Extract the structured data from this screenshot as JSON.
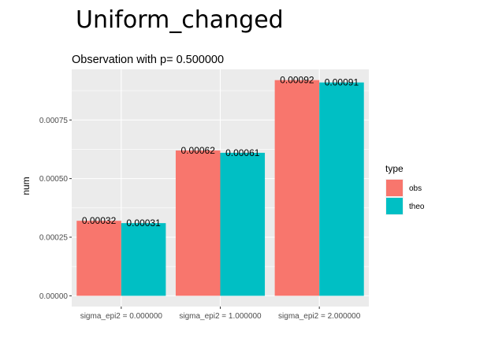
{
  "chart_data": {
    "type": "bar",
    "title": "Uniform_changed",
    "subtitle": "Observation with p= 0.500000",
    "xlabel": "",
    "ylabel": "num",
    "categories": [
      "sigma_epi2 = 0.000000",
      "sigma_epi2 = 1.000000",
      "sigma_epi2 = 2.000000"
    ],
    "series": [
      {
        "name": "obs",
        "color": "#F8766D",
        "values": [
          0.00032,
          0.00062,
          0.00092
        ],
        "labels": [
          "0.00032",
          "0.00062",
          "0.00092"
        ]
      },
      {
        "name": "theo",
        "color": "#00BFC4",
        "values": [
          0.00031,
          0.00061,
          0.00091
        ],
        "labels": [
          "0.00031",
          "0.00061",
          "0.00091"
        ]
      }
    ],
    "yticks": [
      0,
      0.00025,
      0.0005,
      0.00075
    ],
    "ytick_labels": [
      "0.00000",
      "0.00025",
      "0.00050",
      "0.00075"
    ],
    "ylim": [
      -4.58e-05,
      0.000966
    ],
    "legend": {
      "title": "type",
      "position": "right"
    },
    "grid": true,
    "panel_background": "#EBEBEB"
  }
}
